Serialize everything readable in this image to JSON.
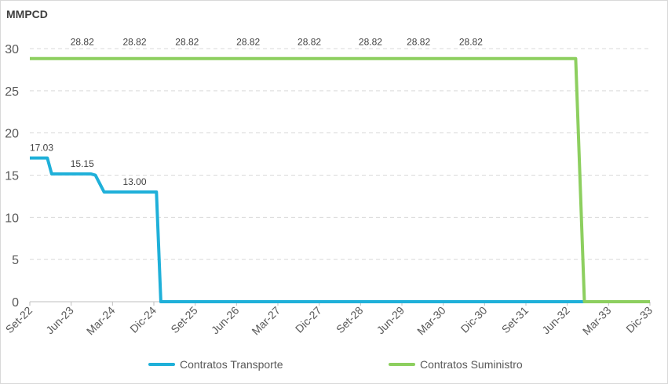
{
  "chart_data": {
    "type": "line",
    "title": "",
    "ylabel": "MMPCD",
    "xlabel": "",
    "ylim": [
      0,
      30
    ],
    "yticks": [
      "0",
      "5",
      "10",
      "15",
      "20",
      "25",
      "30"
    ],
    "xtick_labels": [
      "Set-22",
      "Jun-23",
      "Mar-24",
      "Dic-24",
      "Set-25",
      "Jun-26",
      "Mar-27",
      "Dic-27",
      "Set-28",
      "Jun-29",
      "Mar-30",
      "Dic-30",
      "Set-31",
      "Jun-32",
      "Mar-33",
      "Dic-33"
    ],
    "x_unit": "months since Set-22",
    "grid": "horizontal dashed",
    "legend_position": "bottom",
    "series": [
      {
        "name": "Contratos Transporte",
        "color": "#1fb0d9",
        "points": [
          [
            0,
            17.03
          ],
          [
            4,
            17.03
          ],
          [
            5,
            15.15
          ],
          [
            14,
            15.15
          ],
          [
            15,
            15.0
          ],
          [
            17,
            13.0
          ],
          [
            29,
            13.0
          ],
          [
            30,
            0
          ],
          [
            142,
            0
          ]
        ]
      },
      {
        "name": "Contratos Suministro",
        "color": "#8dcf5f",
        "points": [
          [
            0,
            28.82
          ],
          [
            125,
            28.82
          ],
          [
            127,
            0
          ],
          [
            142,
            0
          ]
        ]
      }
    ],
    "data_labels": [
      {
        "series": 0,
        "text": "17.03",
        "x": 0,
        "y": 17.03
      },
      {
        "series": 0,
        "text": "15.15",
        "x": 12,
        "y": 15.15
      },
      {
        "series": 0,
        "text": "13.00",
        "x": 24,
        "y": 13.0
      },
      {
        "series": 1,
        "text": "28.82",
        "x": 12,
        "y": 28.82
      },
      {
        "series": 1,
        "text": "28.82",
        "x": 24,
        "y": 28.82
      },
      {
        "series": 1,
        "text": "28.82",
        "x": 36,
        "y": 28.82
      },
      {
        "series": 1,
        "text": "28.82",
        "x": 50,
        "y": 28.82
      },
      {
        "series": 1,
        "text": "28.82",
        "x": 64,
        "y": 28.82
      },
      {
        "series": 1,
        "text": "28.82",
        "x": 78,
        "y": 28.82
      },
      {
        "series": 1,
        "text": "28.82",
        "x": 89,
        "y": 28.82
      },
      {
        "series": 1,
        "text": "28.82",
        "x": 101,
        "y": 28.82
      }
    ]
  }
}
